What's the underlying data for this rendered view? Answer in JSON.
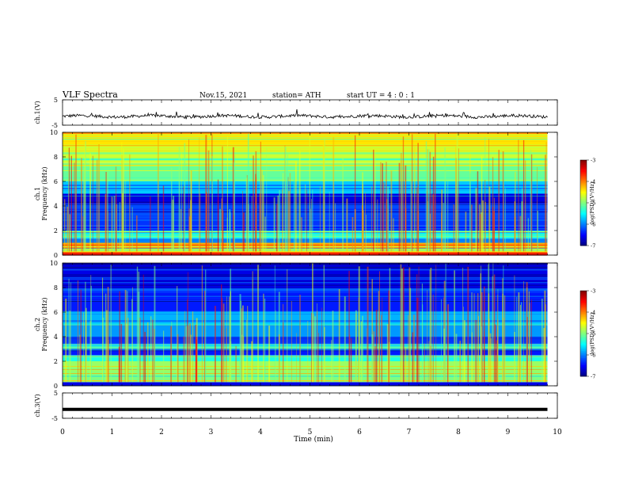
{
  "header": {
    "title": "VLF  Spectra",
    "date": "Nov.15, 2021",
    "station": "station= ATH",
    "start": "start  UT  =    4  : 0   : 1"
  },
  "chart_data": [
    {
      "type": "line",
      "name": "ch1-waveform",
      "ylabel": "ch.1(V)",
      "ylim": [
        -5,
        5
      ],
      "yticks": [
        "5",
        "-5"
      ],
      "xlim": [
        0,
        10
      ],
      "x_end": 9.8,
      "baseline": -1.5,
      "amplitude": 0.6
    },
    {
      "type": "heatmap",
      "name": "ch1-spectrogram",
      "ylabel": "ch.1\nFrequency  (kHz)",
      "ylabel_line1": "ch.1",
      "ylabel_line2": "Frequency  (kHz)",
      "ylim": [
        0,
        10
      ],
      "yticks": [
        "0",
        "2",
        "4",
        "6",
        "8",
        "10"
      ],
      "xlim": [
        0,
        10
      ],
      "x_end": 9.8,
      "colorbar": {
        "label": "log(PSD)(V²/Hz)",
        "ticks": [
          "-3",
          "-4",
          "-5",
          "-6",
          "-7"
        ],
        "range": [
          -7,
          -3
        ]
      },
      "bands": [
        {
          "from": 0,
          "to": 0.3,
          "value": -3.6
        },
        {
          "from": 0.3,
          "to": 0.6,
          "value": -5.0
        },
        {
          "from": 0.6,
          "to": 1.0,
          "value": -4.2
        },
        {
          "from": 1.0,
          "to": 1.4,
          "value": -6.0
        },
        {
          "from": 1.4,
          "to": 2.0,
          "value": -5.5
        },
        {
          "from": 2.0,
          "to": 2.4,
          "value": -6.4
        },
        {
          "from": 2.4,
          "to": 3.0,
          "value": -6.3
        },
        {
          "from": 3.0,
          "to": 4.2,
          "value": -6.2
        },
        {
          "from": 4.2,
          "to": 5.0,
          "value": -6.6
        },
        {
          "from": 5.0,
          "to": 6.0,
          "value": -5.7
        },
        {
          "from": 6.0,
          "to": 7.5,
          "value": -5.1
        },
        {
          "from": 7.5,
          "to": 9.0,
          "value": -4.7
        },
        {
          "from": 9.0,
          "to": 10.0,
          "value": -4.4
        }
      ]
    },
    {
      "type": "heatmap",
      "name": "ch2-spectrogram",
      "ylabel_line1": "ch.2",
      "ylabel_line2": "Frequency  (kHz)",
      "ylim": [
        0,
        10
      ],
      "yticks": [
        "0",
        "2",
        "4",
        "6",
        "8",
        "10"
      ],
      "xlim": [
        0,
        10
      ],
      "x_end": 9.8,
      "colorbar": {
        "label": "log(PSD)(V²/Hz)",
        "ticks": [
          "-3",
          "-4",
          "-5",
          "-6",
          "-7"
        ],
        "range": [
          -7,
          -3
        ]
      },
      "bands": [
        {
          "from": 0,
          "to": 0.3,
          "value": -6.6
        },
        {
          "from": 0.3,
          "to": 1.0,
          "value": -5.0
        },
        {
          "from": 1.0,
          "to": 2.0,
          "value": -4.9
        },
        {
          "from": 2.0,
          "to": 2.5,
          "value": -5.4
        },
        {
          "from": 2.5,
          "to": 3.0,
          "value": -6.4
        },
        {
          "from": 3.0,
          "to": 3.4,
          "value": -5.2
        },
        {
          "from": 3.4,
          "to": 4.0,
          "value": -6.3
        },
        {
          "from": 4.0,
          "to": 5.0,
          "value": -5.9
        },
        {
          "from": 5.0,
          "to": 6.0,
          "value": -5.8
        },
        {
          "from": 6.0,
          "to": 8.0,
          "value": -6.4
        },
        {
          "from": 8.0,
          "to": 10.0,
          "value": -6.6
        }
      ]
    },
    {
      "type": "line",
      "name": "ch3-waveform",
      "ylabel": "ch.3(V)",
      "ylim": [
        -5,
        5
      ],
      "yticks": [
        "5",
        "-5"
      ],
      "xlim": [
        0,
        10
      ],
      "x_end": 9.8,
      "baseline": -1.5
    }
  ],
  "xaxis": {
    "label": "Time  (min)",
    "ticks": [
      "0",
      "1",
      "2",
      "3",
      "4",
      "5",
      "6",
      "7",
      "8",
      "9",
      "10"
    ]
  }
}
